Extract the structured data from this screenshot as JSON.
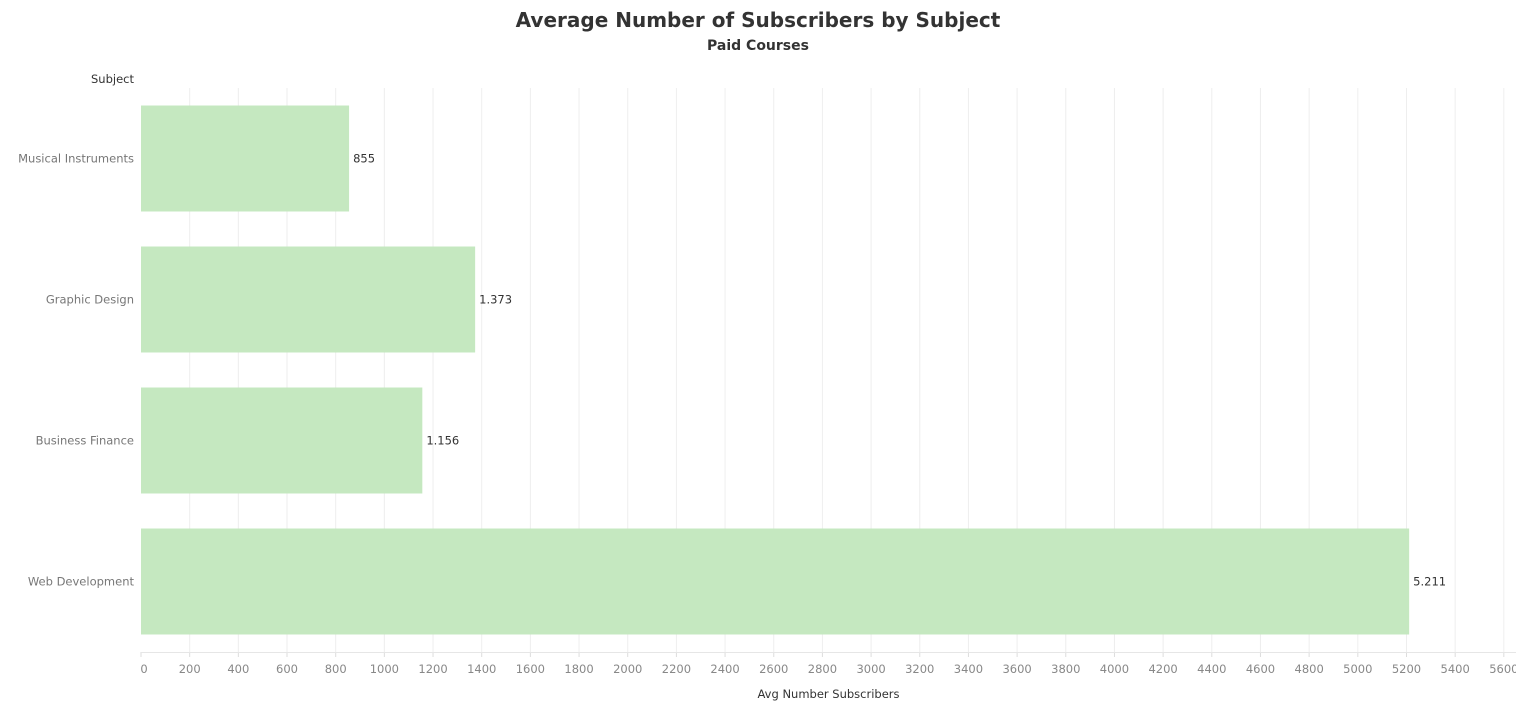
{
  "chart_data": {
    "type": "bar",
    "orientation": "horizontal",
    "title": "Average Number of Subscribers by Subject",
    "subtitle": "Paid Courses",
    "row_header": "Subject",
    "xlabel": "Avg Number Subscribers",
    "categories": [
      "Musical Instruments",
      "Graphic Design",
      "Business Finance",
      "Web Development"
    ],
    "values": [
      855,
      1373,
      1156,
      5211
    ],
    "value_labels": [
      "855",
      "1.373",
      "1.156",
      "5.211"
    ],
    "xlim": [
      0,
      5650
    ],
    "xticks": [
      0,
      200,
      400,
      600,
      800,
      1000,
      1200,
      1400,
      1600,
      1800,
      2000,
      2200,
      2400,
      2600,
      2800,
      3000,
      3200,
      3400,
      3600,
      3800,
      4000,
      4200,
      4400,
      4600,
      4800,
      5000,
      5200,
      5400,
      5600
    ],
    "grid": "vertical",
    "bar_color": "#c5e8c0",
    "grid_color": "#eeeeee"
  }
}
